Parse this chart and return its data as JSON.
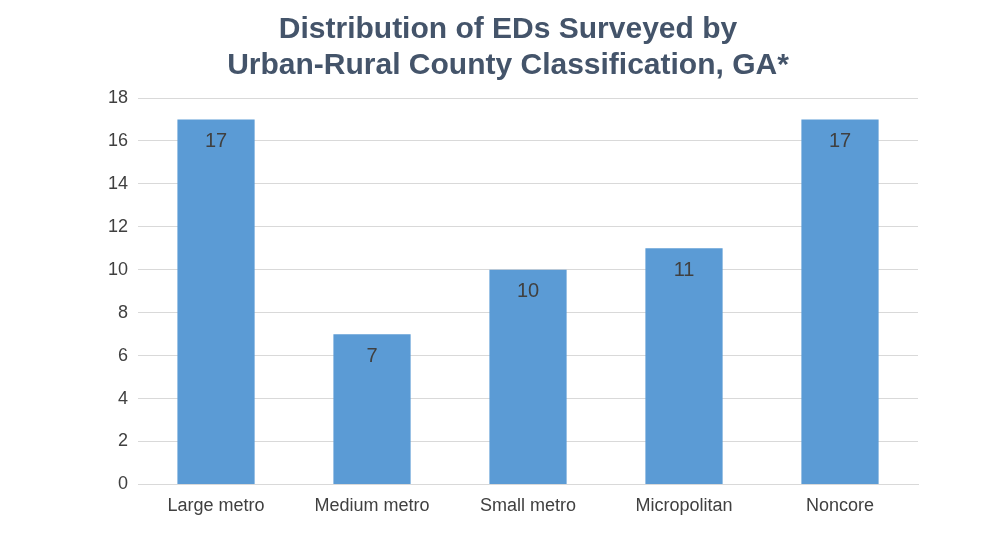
{
  "chart_data": {
    "type": "bar",
    "title": "Distribution of EDs Surveyed by Urban-Rural County Classification, GA*",
    "categories": [
      "Large metro",
      "Medium metro",
      "Small metro",
      "Micropolitan",
      "Noncore"
    ],
    "values": [
      17,
      7,
      10,
      11,
      17
    ],
    "color": "#5b9bd5",
    "ylim": [
      0,
      18
    ],
    "yticks": [
      0,
      2,
      4,
      6,
      8,
      10,
      12,
      14,
      16,
      18
    ],
    "grid": "y",
    "data_labels": true,
    "legend": false
  }
}
